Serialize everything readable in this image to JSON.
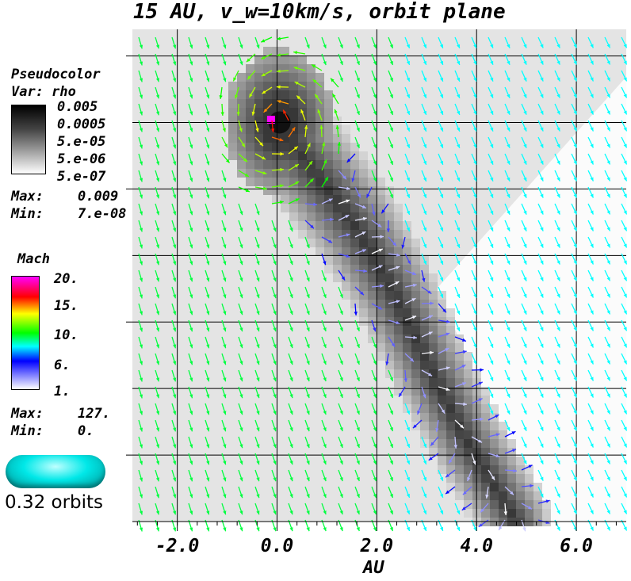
{
  "title": "15 AU, v_w=10km/s, orbit plane",
  "chart_data": {
    "type": "heatmap",
    "xlabel": "AU",
    "ylabel": "",
    "xlim": [
      -2.9,
      7.0
    ],
    "ylim": [
      -5.0,
      2.4
    ],
    "x_ticks": [
      "-2.0",
      "0.0",
      "2.0",
      "4.0",
      "6.0"
    ],
    "x_tick_values": [
      -2.0,
      0.0,
      2.0,
      4.0,
      6.0
    ],
    "grid": true,
    "fields": {
      "pseudocolor": {
        "header": "Pseudocolor",
        "var_label": "Var: rho",
        "scale": "log",
        "labels": [
          "0.005",
          "0.0005",
          "5.e-05",
          "5.e-06",
          "5.e-07"
        ],
        "max_label": "Max:",
        "max": "0.009",
        "min_label": "Min:",
        "min": "7.e-08"
      },
      "mach": {
        "header": "Mach",
        "labels": [
          "20.",
          "15.",
          "10.",
          "6.",
          "1."
        ],
        "max_label": "Max:",
        "max": "127.",
        "min_label": "Min:",
        "min": "0."
      }
    },
    "vector_field": {
      "description": "velocity vectors colored by Mach number"
    }
  },
  "time_label": "0.32 orbits",
  "colors": {
    "cyan": "#00e8e8",
    "magenta": "#ff00ff",
    "red": "#ff0000",
    "green": "#00ff00",
    "blue": "#0000ff"
  }
}
